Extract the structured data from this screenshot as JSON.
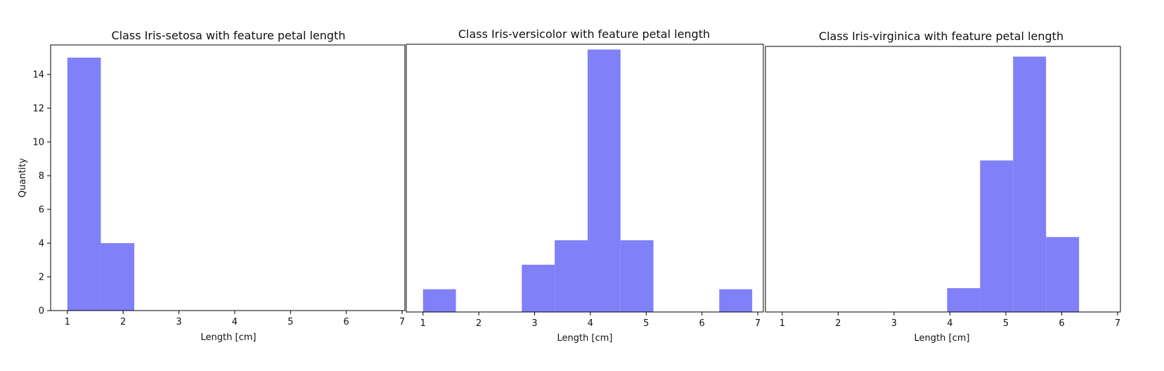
{
  "chart_data": [
    {
      "type": "bar",
      "title": "Class Iris-setosa with feature petal length",
      "xlabel": "Length [cm]",
      "ylabel": "Quantity",
      "xlim": [
        0.7,
        7.05
      ],
      "ylim": [
        0,
        15.75
      ],
      "xticks": [
        "1",
        "2",
        "3",
        "4",
        "5",
        "6",
        "7"
      ],
      "yticks": [
        "0",
        "2",
        "4",
        "6",
        "8",
        "10",
        "12",
        "14"
      ],
      "bins": [
        {
          "x0": 1.0,
          "x1": 1.6,
          "value": 15
        },
        {
          "x0": 1.6,
          "x1": 2.2,
          "value": 4
        }
      ],
      "color": "#8080f8"
    },
    {
      "type": "bar",
      "title": "Class Iris-versicolor with feature petal length",
      "xlabel": "Length [cm]",
      "ylabel": "",
      "xlim": [
        0.7,
        7.1
      ],
      "ylim": [
        0,
        15.3
      ],
      "xticks": [
        "1",
        "2",
        "3",
        "4",
        "5",
        "6",
        "7"
      ],
      "yticks": [],
      "bins": [
        {
          "x0": 1.0,
          "x1": 1.59,
          "value": 1.3
        },
        {
          "x0": 2.77,
          "x1": 3.36,
          "value": 2.7
        },
        {
          "x0": 3.36,
          "x1": 3.95,
          "value": 4.1
        },
        {
          "x0": 3.95,
          "x1": 4.54,
          "value": 15
        },
        {
          "x0": 4.54,
          "x1": 5.13,
          "value": 4.1
        },
        {
          "x0": 6.31,
          "x1": 6.9,
          "value": 1.3
        }
      ],
      "color": "#8080f8"
    },
    {
      "type": "bar",
      "title": "Class Iris-virginica with feature petal length",
      "xlabel": "Length [cm]",
      "ylabel": "",
      "xlim": [
        0.7,
        7.05
      ],
      "ylim": [
        0,
        15.6
      ],
      "xticks": [
        "1",
        "2",
        "3",
        "4",
        "5",
        "6",
        "7"
      ],
      "yticks": [],
      "bins": [
        {
          "x0": 3.95,
          "x1": 4.54,
          "value": 1.4
        },
        {
          "x0": 4.54,
          "x1": 5.13,
          "value": 8.9
        },
        {
          "x0": 5.13,
          "x1": 5.72,
          "value": 15
        },
        {
          "x0": 5.72,
          "x1": 6.31,
          "value": 4.4
        }
      ],
      "color": "#8080f8"
    }
  ]
}
